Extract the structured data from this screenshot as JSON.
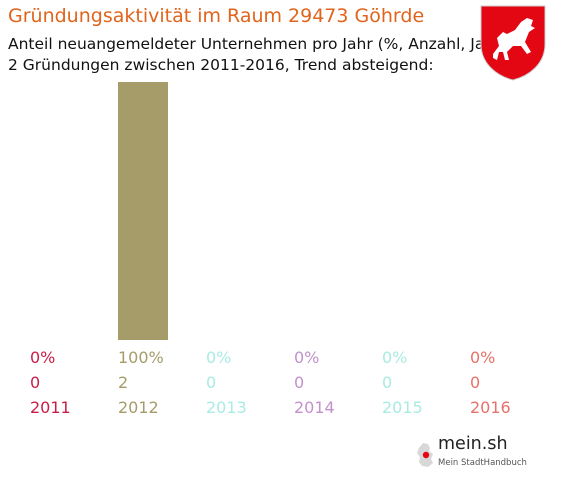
{
  "title": "Gründungsaktivität im Raum 29473 Göhrde",
  "subtitle_1": "Anteil neuangemeldeter Unternehmen pro Jahr (%, Anzahl, Jahr)",
  "subtitle_2": "2 Gründungen zwischen 2011-2016, Trend absteigend:",
  "logo": {
    "name": "mein.sh",
    "tagline": "Mein StadtHandbuch",
    "icon": "germany-map-icon"
  },
  "crest": {
    "icon": "lower-saxony-horse-crest-icon",
    "color": "#e30613"
  },
  "chart_data": {
    "type": "bar",
    "categories": [
      "2011",
      "2012",
      "2013",
      "2014",
      "2015",
      "2016"
    ],
    "percent_labels": [
      "0%",
      "100%",
      "0%",
      "0%",
      "0%",
      "0%"
    ],
    "count_labels": [
      "0",
      "2",
      "0",
      "0",
      "0",
      "0"
    ],
    "values": [
      0,
      100,
      0,
      0,
      0,
      0
    ],
    "counts": [
      0,
      2,
      0,
      0,
      0,
      0
    ],
    "colors": [
      "#c81e48",
      "#a59c6a",
      "#a8ece4",
      "#c391cc",
      "#a8ece0",
      "#e8706a"
    ],
    "ylim": [
      0,
      100
    ],
    "grid": false,
    "legend": "none"
  }
}
